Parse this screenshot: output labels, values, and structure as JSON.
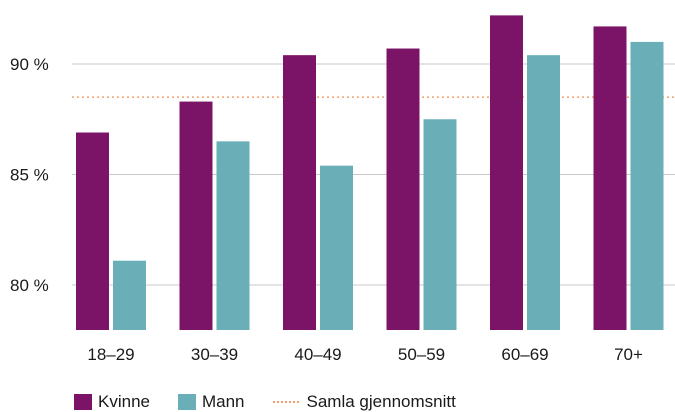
{
  "chart_data": {
    "type": "bar",
    "categories": [
      "18–29",
      "30–39",
      "40–49",
      "50–59",
      "60–69",
      "70+"
    ],
    "series": [
      {
        "name": "Kvinne",
        "color": "#7b1467",
        "values": [
          86.9,
          88.3,
          90.4,
          90.7,
          92.2,
          91.7
        ]
      },
      {
        "name": "Mann",
        "color": "#6aafb8",
        "values": [
          81.1,
          86.5,
          85.4,
          87.5,
          90.4,
          91.0
        ]
      }
    ],
    "reference_line": {
      "name": "Samla gjennomsnitt",
      "value": 88.5,
      "color": "#f0a06a",
      "style": "dotted"
    },
    "y_ticks": [
      80,
      85,
      90
    ],
    "y_tick_labels": [
      "80 %",
      "85 %",
      "90 %"
    ],
    "ylim": [
      78,
      92.2
    ],
    "grid": true,
    "legend_position": "bottom-left",
    "title": "",
    "xlabel": "",
    "ylabel": ""
  }
}
